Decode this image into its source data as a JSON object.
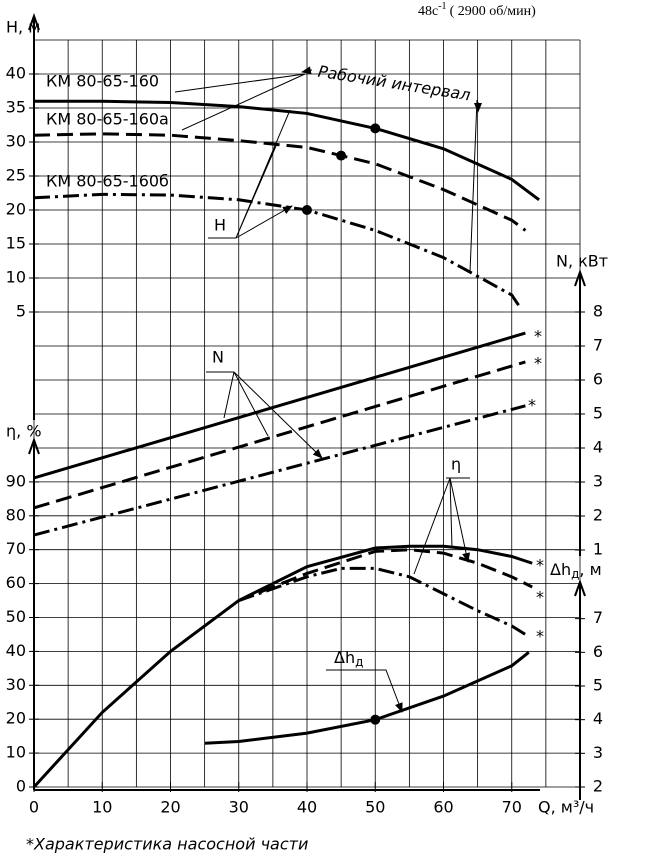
{
  "speed": {
    "value": "48с",
    "exponent": "-1",
    "rpm": "( 2900 об/мин)"
  },
  "footnote": "*Характеристика насосной части",
  "asterisk": "*",
  "working_interval": "Рабочий интервал",
  "chart_data": [
    {
      "type": "line",
      "ylabel": "H, м",
      "pointer_label": "H",
      "color": "#000",
      "xlim": [
        0,
        80
      ],
      "ylim": [
        0,
        45
      ],
      "yticks": [
        5,
        10,
        15,
        20,
        25,
        30,
        35,
        40
      ],
      "ygrid": [
        5,
        10,
        15,
        20,
        25,
        30,
        35,
        40,
        45
      ],
      "series": [
        {
          "name": "КМ 80-65-160",
          "style": "solid",
          "x": [
            0,
            10,
            20,
            30,
            40,
            50,
            60,
            70,
            74
          ],
          "values": [
            36,
            36,
            35.8,
            35.2,
            34.2,
            32,
            29,
            24.5,
            21.5
          ]
        },
        {
          "name": "КМ 80-65-160а",
          "style": "dashed",
          "x": [
            0,
            10,
            20,
            30,
            40,
            45,
            50,
            60,
            70,
            72
          ],
          "values": [
            31,
            31.2,
            31,
            30.2,
            29.2,
            28,
            26.8,
            23,
            18.5,
            17
          ]
        },
        {
          "name": "КМ 80-65-160б",
          "style": "dashdot",
          "x": [
            0,
            10,
            20,
            30,
            40,
            50,
            60,
            70,
            71
          ],
          "values": [
            21.8,
            22.3,
            22.2,
            21.5,
            20,
            17,
            13,
            7.5,
            6
          ]
        }
      ],
      "points": {
        "x": [
          50,
          45,
          40
        ],
        "y": [
          32,
          28,
          20
        ]
      }
    },
    {
      "type": "line",
      "ylabel": "N, кВт",
      "pointer_label": "N",
      "color": "#000",
      "xlim": [
        0,
        80
      ],
      "ylim": [
        0,
        8
      ],
      "yticks": [
        1,
        2,
        3,
        4,
        5,
        6,
        7,
        8
      ],
      "ygrid": [
        5,
        6,
        7
      ],
      "series": [
        {
          "style": "solid",
          "x": [
            0,
            72
          ],
          "values": [
            3.12,
            7.38
          ]
        },
        {
          "style": "dashed",
          "x": [
            0,
            72
          ],
          "values": [
            2.24,
            6.53
          ]
        },
        {
          "style": "dashdot",
          "x": [
            0,
            72
          ],
          "values": [
            1.44,
            5.24
          ]
        }
      ]
    },
    {
      "type": "line",
      "ylabel": "η, %",
      "pointer_label": "η",
      "xlabel": "Q, м³/ч",
      "color": "#000",
      "xlim": [
        0,
        80
      ],
      "ylim": [
        0,
        100
      ],
      "yticks": [
        0,
        10,
        20,
        30,
        40,
        50,
        60,
        70,
        80,
        90
      ],
      "ygrid": [
        0,
        10,
        20,
        30,
        40,
        50,
        60,
        70,
        80,
        90,
        100
      ],
      "xticks": [
        0,
        10,
        20,
        30,
        40,
        50,
        60,
        70
      ],
      "xgrid": [
        0,
        5,
        10,
        15,
        20,
        25,
        30,
        35,
        40,
        45,
        50,
        55,
        60,
        65,
        70,
        75,
        80
      ],
      "series": [
        {
          "style": "solid",
          "x": [
            0,
            10,
            20,
            30,
            40,
            50,
            55,
            60,
            65,
            70,
            73
          ],
          "values": [
            0,
            22,
            40,
            55,
            65,
            70.5,
            71,
            71,
            70,
            68,
            66
          ]
        },
        {
          "style": "dashed",
          "x": [
            30,
            40,
            50,
            55,
            60,
            65,
            70,
            73
          ],
          "values": [
            55,
            63,
            69.5,
            70,
            69,
            66,
            62,
            59
          ]
        },
        {
          "style": "dashdot",
          "x": [
            30,
            40,
            45,
            50,
            55,
            60,
            65,
            70,
            72
          ],
          "values": [
            55,
            62,
            64.5,
            64.5,
            62,
            57,
            52,
            47.5,
            45
          ]
        }
      ]
    },
    {
      "type": "line",
      "ylabel": {
        "main": "Δh",
        "sub": "д",
        "unit": ", м"
      },
      "pointer_label": {
        "main": "Δh",
        "sub": "д"
      },
      "color": "#000",
      "xlim": [
        0,
        80
      ],
      "ylim": [
        2,
        8
      ],
      "yticks": [
        2,
        3,
        4,
        5,
        6,
        7
      ],
      "series": [
        {
          "style": "solid",
          "x": [
            25,
            30,
            40,
            50,
            60,
            70,
            72.5
          ],
          "values": [
            3.3,
            3.35,
            3.6,
            4,
            4.7,
            5.6,
            6
          ]
        }
      ],
      "points": {
        "x": [
          50
        ],
        "y": [
          4
        ]
      }
    }
  ]
}
